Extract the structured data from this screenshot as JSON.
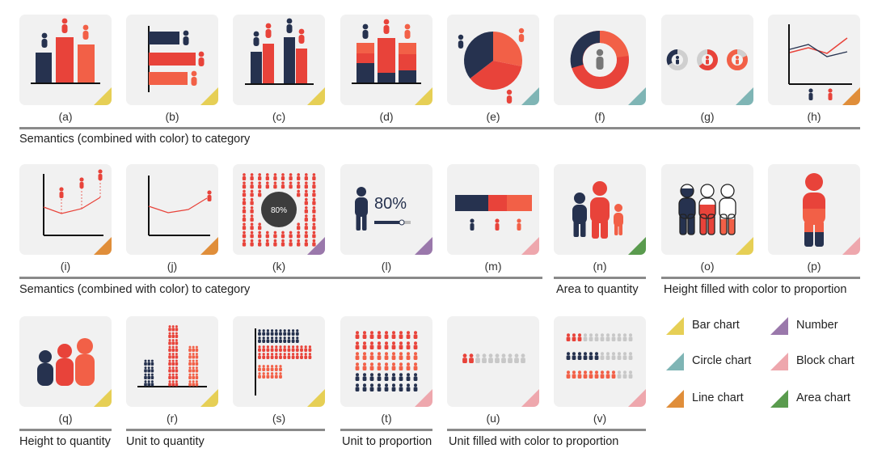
{
  "colors": {
    "navy": "#26324f",
    "red": "#e8433a",
    "coral": "#f26047",
    "gray": "#c8c8c8",
    "bar_chart": "#e6cf55",
    "circle_chart": "#7fb5b5",
    "line_chart": "#e08e3a",
    "area_chart": "#5a9b4e",
    "number": "#9a78ab",
    "block_chart": "#eea7ad"
  },
  "tiles": [
    {
      "label": "(a)",
      "category": "bar_chart",
      "icon": "bar-chart-person-icon"
    },
    {
      "label": "(b)",
      "category": "bar_chart",
      "icon": "horizontal-bar-person-icon"
    },
    {
      "label": "(c)",
      "category": "bar_chart",
      "icon": "grouped-bar-person-icon"
    },
    {
      "label": "(d)",
      "category": "bar_chart",
      "icon": "stacked-bar-person-icon"
    },
    {
      "label": "(e)",
      "category": "circle_chart",
      "icon": "pie-chart-person-icon"
    },
    {
      "label": "(f)",
      "category": "circle_chart",
      "icon": "donut-person-icon"
    },
    {
      "label": "(g)",
      "category": "circle_chart",
      "icon": "small-donuts-person-icon"
    },
    {
      "label": "(h)",
      "category": "line_chart",
      "icon": "multi-line-person-icon"
    },
    {
      "label": "(i)",
      "category": "line_chart",
      "icon": "line-pins-person-icon"
    },
    {
      "label": "(j)",
      "category": "line_chart",
      "icon": "line-end-person-icon"
    },
    {
      "label": "(k)",
      "category": "number",
      "icon": "number-crowd-icon",
      "value_text": "80%"
    },
    {
      "label": "(l)",
      "category": "number",
      "icon": "number-person-slider-icon",
      "value_text": "80%"
    },
    {
      "label": "(m)",
      "category": "block_chart",
      "icon": "block-bar-person-icon"
    },
    {
      "label": "(n)",
      "category": "area_chart",
      "icon": "area-persons-icon"
    },
    {
      "label": "(o)",
      "category": "bar_chart",
      "icon": "filled-outline-persons-icon"
    },
    {
      "label": "(p)",
      "category": "block_chart",
      "icon": "filled-large-person-icon"
    },
    {
      "label": "(q)",
      "category": "bar_chart",
      "icon": "height-persons-icon"
    },
    {
      "label": "(r)",
      "category": "bar_chart",
      "icon": "unit-columns-icon"
    },
    {
      "label": "(s)",
      "category": "bar_chart",
      "icon": "unit-rows-icon"
    },
    {
      "label": "(t)",
      "category": "block_chart",
      "icon": "unit-proportion-grid-icon"
    },
    {
      "label": "(u)",
      "category": "block_chart",
      "icon": "unit-fill-row-icon"
    },
    {
      "label": "(v)",
      "category": "block_chart",
      "icon": "unit-fill-rows-icon"
    }
  ],
  "sections": [
    "Semantics (combined with color) to category",
    "Semantics (combined with color) to category",
    "Area to quantity",
    "Height filled with color to proportion",
    "Height to quantity",
    "Unit to quantity",
    "Unit to proportion",
    "Unit filled with color to proportion"
  ],
  "legend": [
    {
      "label": "Bar chart",
      "category": "bar_chart"
    },
    {
      "label": "Number",
      "category": "number"
    },
    {
      "label": "Circle chart",
      "category": "circle_chart"
    },
    {
      "label": "Block chart",
      "category": "block_chart"
    },
    {
      "label": "Line chart",
      "category": "line_chart"
    },
    {
      "label": "Area chart",
      "category": "area_chart"
    }
  ]
}
